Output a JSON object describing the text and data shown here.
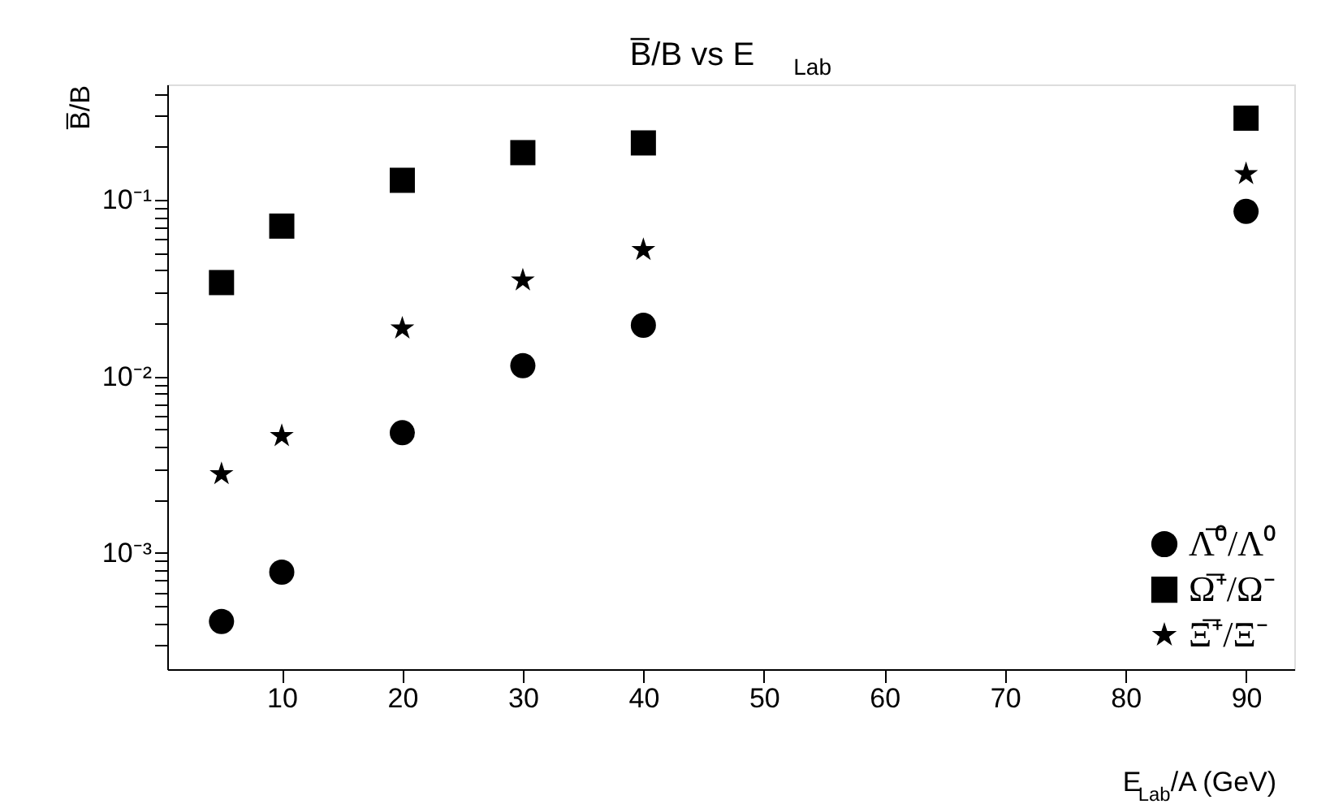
{
  "chart_data": {
    "type": "scatter",
    "title": "B̅/B vs E$_{Lab}$",
    "xlabel": "E$_{Lab}$/A (GeV)",
    "ylabel": "B̅/B",
    "x": [
      5,
      10,
      20,
      30,
      40,
      90
    ],
    "series": [
      {
        "name": "Λ̅⁰/Λ⁰",
        "color": "#000000",
        "marker": "circle",
        "values": [
          0.00041,
          0.00078,
          0.0048,
          0.0115,
          0.0195,
          0.086
        ]
      },
      {
        "name": "Ω̅⁺/Ω⁻",
        "color": "#000000",
        "marker": "square",
        "values": [
          0.034,
          0.071,
          0.129,
          0.185,
          0.21,
          0.29
        ]
      },
      {
        "name": "Ξ̅⁺/Ξ⁻",
        "color": "#000000",
        "marker": "star",
        "values": [
          0.0028,
          0.0046,
          0.0187,
          0.035,
          0.052,
          0.14
        ]
      }
    ],
    "log": "y",
    "grid": false,
    "legend": "bottom right",
    "xlim": [
      0.5,
      94
    ],
    "xticks": [
      10,
      20,
      30,
      40,
      50,
      60,
      70,
      80,
      90
    ],
    "ylim": [
      0.00022,
      0.45
    ],
    "yticks": [
      {
        "value": 0.0003,
        "label": null
      },
      {
        "value": 0.0004,
        "label": null
      },
      {
        "value": 0.0005,
        "label": null
      },
      {
        "value": 0.0006,
        "label": null
      },
      {
        "value": 0.0007,
        "label": null
      },
      {
        "value": 0.0008,
        "label": null
      },
      {
        "value": 0.0009,
        "label": null
      },
      {
        "value": 0.001,
        "label": "10⁻³"
      },
      {
        "value": 0.002,
        "label": null
      },
      {
        "value": 0.003,
        "label": null
      },
      {
        "value": 0.004,
        "label": null
      },
      {
        "value": 0.005,
        "label": null
      },
      {
        "value": 0.006,
        "label": null
      },
      {
        "value": 0.007,
        "label": null
      },
      {
        "value": 0.008,
        "label": null
      },
      {
        "value": 0.009,
        "label": null
      },
      {
        "value": 0.01,
        "label": "10⁻²"
      },
      {
        "value": 0.02,
        "label": null
      },
      {
        "value": 0.03,
        "label": null
      },
      {
        "value": 0.04,
        "label": null
      },
      {
        "value": 0.05,
        "label": null
      },
      {
        "value": 0.06,
        "label": null
      },
      {
        "value": 0.07,
        "label": null
      },
      {
        "value": 0.08,
        "label": null
      },
      {
        "value": 0.09,
        "label": null
      },
      {
        "value": 0.1,
        "label": "10⁻¹"
      },
      {
        "value": 0.2,
        "label": null
      },
      {
        "value": 0.3,
        "label": null
      },
      {
        "value": 0.4,
        "label": null
      }
    ]
  }
}
